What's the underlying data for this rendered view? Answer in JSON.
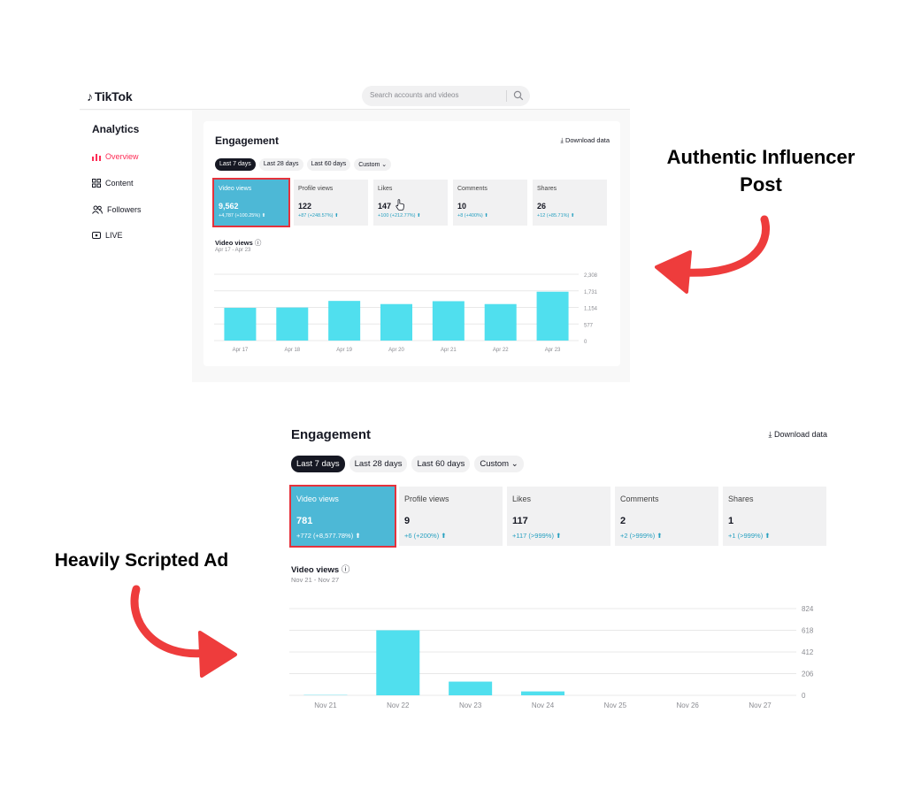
{
  "annotations": {
    "top_line1": "Authentic Influencer",
    "top_line2": "Post",
    "bottom": "Heavily Scripted Ad"
  },
  "colors": {
    "accent_red": "#fe2c55",
    "bar": "#50dfee",
    "selected_card": "#4db8d6",
    "arrow": "#ee3c3c"
  },
  "shot1": {
    "logo": "TikTok",
    "search_placeholder": "Search accounts and videos",
    "sidebar": {
      "title": "Analytics",
      "items": [
        {
          "label": "Overview",
          "icon": "bar-chart-icon",
          "active": true
        },
        {
          "label": "Content",
          "icon": "grid-icon"
        },
        {
          "label": "Followers",
          "icon": "people-icon"
        },
        {
          "label": "LIVE",
          "icon": "live-icon"
        }
      ]
    },
    "heading": "Engagement",
    "download": "Download data",
    "ranges": [
      "Last 7 days",
      "Last 28 days",
      "Last 60 days",
      "Custom"
    ],
    "metrics": [
      {
        "label": "Video views",
        "value": "9,562",
        "change": "+4,787 (+100.25%)"
      },
      {
        "label": "Profile views",
        "value": "122",
        "change": "+87 (+248.57%)"
      },
      {
        "label": "Likes",
        "value": "147",
        "change": "+100 (+212.77%)"
      },
      {
        "label": "Comments",
        "value": "10",
        "change": "+8 (+400%)"
      },
      {
        "label": "Shares",
        "value": "26",
        "change": "+12 (+85.71%)"
      }
    ],
    "chart_title": "Video views",
    "chart_range": "Apr 17 - Apr 23"
  },
  "shot2": {
    "heading": "Engagement",
    "download": "Download data",
    "ranges": [
      "Last 7 days",
      "Last 28 days",
      "Last 60 days",
      "Custom"
    ],
    "metrics": [
      {
        "label": "Video views",
        "value": "781",
        "change": "+772 (+8,577.78%)"
      },
      {
        "label": "Profile views",
        "value": "9",
        "change": "+6 (+200%)"
      },
      {
        "label": "Likes",
        "value": "117",
        "change": "+117 (>999%)"
      },
      {
        "label": "Comments",
        "value": "2",
        "change": "+2 (>999%)"
      },
      {
        "label": "Shares",
        "value": "1",
        "change": "+1 (>999%)"
      }
    ],
    "chart_title": "Video views",
    "chart_range": "Nov 21 - Nov 27"
  },
  "chart_data": [
    {
      "type": "bar",
      "categories": [
        "Apr 17",
        "Apr 18",
        "Apr 19",
        "Apr 20",
        "Apr 21",
        "Apr 22",
        "Apr 23"
      ],
      "values": [
        1140,
        1150,
        1380,
        1270,
        1370,
        1270,
        1700
      ],
      "yticks": [
        "2,308",
        "1,731",
        "1,154",
        "577",
        "0"
      ],
      "ylim": [
        0,
        2308
      ],
      "grid": true
    },
    {
      "type": "bar",
      "categories": [
        "Nov 21",
        "Nov 22",
        "Nov 23",
        "Nov 24",
        "Nov 25",
        "Nov 26",
        "Nov 27"
      ],
      "values": [
        3,
        618,
        130,
        37,
        0,
        0,
        0
      ],
      "yticks": [
        "824",
        "618",
        "412",
        "206",
        "0"
      ],
      "ylim": [
        0,
        824
      ],
      "grid": true
    }
  ]
}
